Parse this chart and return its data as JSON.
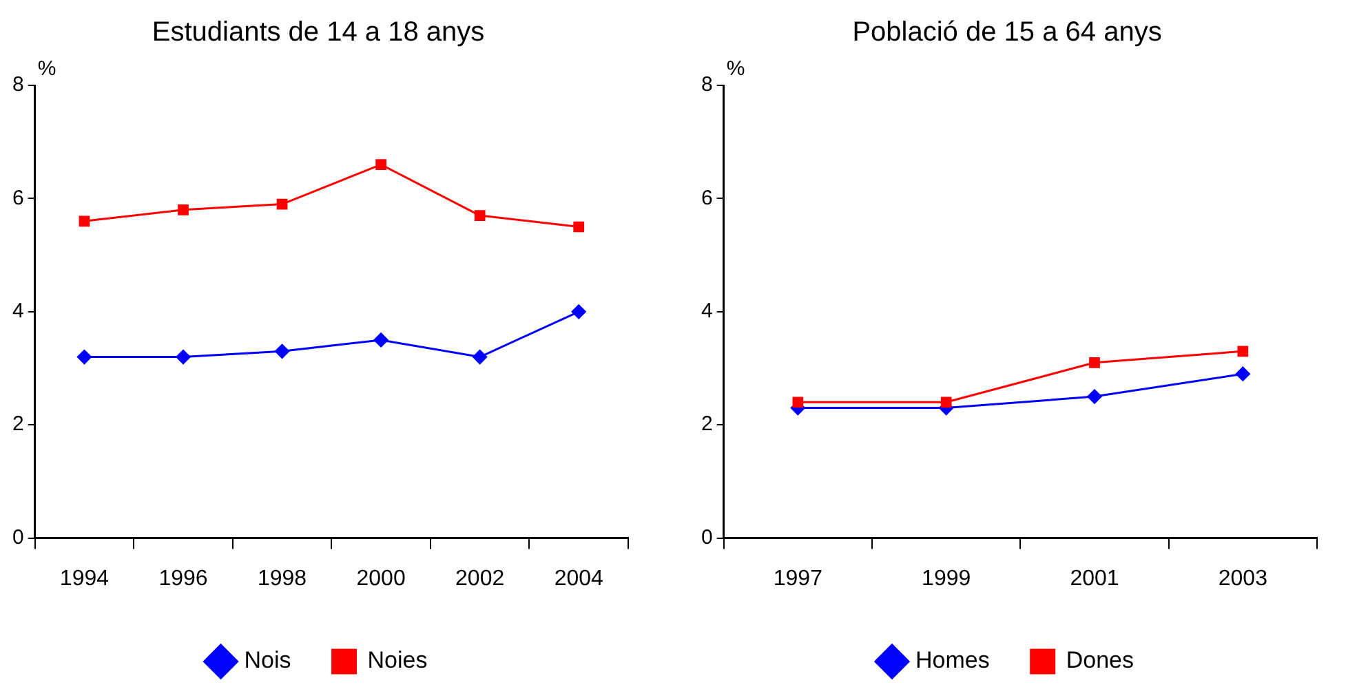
{
  "chart_data": [
    {
      "type": "line",
      "title": "Estudiants de 14 a 18 anys",
      "ylabel": "%",
      "categories": [
        "1994",
        "1996",
        "1998",
        "2000",
        "2002",
        "2004"
      ],
      "ylim": [
        0,
        8
      ],
      "yticks": [
        0,
        2,
        4,
        6,
        8
      ],
      "grid": false,
      "legend": "bottom",
      "series": [
        {
          "name": "Nois",
          "color": "#0000ff",
          "marker": "diamond",
          "values": [
            3.2,
            3.2,
            3.3,
            3.5,
            3.2,
            4.0
          ]
        },
        {
          "name": "Noies",
          "color": "#ff0000",
          "marker": "square",
          "values": [
            5.6,
            5.8,
            5.9,
            6.6,
            5.7,
            5.5
          ]
        }
      ]
    },
    {
      "type": "line",
      "title": "Població de 15 a 64 anys",
      "ylabel": "%",
      "categories": [
        "1997",
        "1999",
        "2001",
        "2003"
      ],
      "ylim": [
        0,
        8
      ],
      "yticks": [
        0,
        2,
        4,
        6,
        8
      ],
      "grid": false,
      "legend": "bottom",
      "series": [
        {
          "name": "Homes",
          "color": "#0000ff",
          "marker": "diamond",
          "values": [
            2.3,
            2.3,
            2.5,
            2.9
          ]
        },
        {
          "name": "Dones",
          "color": "#ff0000",
          "marker": "square",
          "values": [
            2.4,
            2.4,
            3.1,
            3.3
          ]
        }
      ]
    }
  ]
}
